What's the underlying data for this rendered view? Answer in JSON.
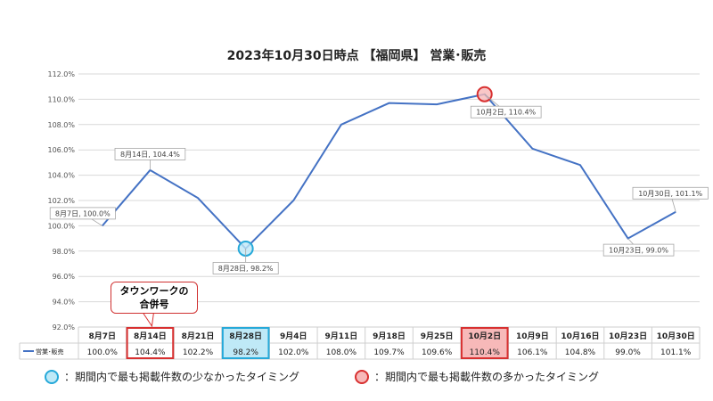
{
  "chart_data": {
    "type": "line",
    "title": "2023年10月30日時点 【福岡県】 営業･販売",
    "categories": [
      "8月7日",
      "8月14日",
      "8月21日",
      "8月28日",
      "9月4日",
      "9月11日",
      "9月18日",
      "9月25日",
      "10月2日",
      "10月9日",
      "10月16日",
      "10月23日",
      "10月30日"
    ],
    "series": [
      {
        "name": "営業･販売",
        "values": [
          100.0,
          104.4,
          102.2,
          98.2,
          102.0,
          108.0,
          109.7,
          109.6,
          110.4,
          106.1,
          104.8,
          99.0,
          101.1
        ],
        "table_values": [
          "100.0%",
          "104.4%",
          "102.2%",
          "98.2%",
          "102.0%",
          "108.0%",
          "109.7%",
          "109.6%",
          "110.4%",
          "106.1%",
          "104.8%",
          "99.0%",
          "101.1%"
        ],
        "color": "#4472c4"
      }
    ],
    "ylim": [
      92,
      112
    ],
    "yticks": [
      "92.0%",
      "94.0%",
      "96.0%",
      "98.0%",
      "100.0%",
      "102.0%",
      "104.0%",
      "106.0%",
      "108.0%",
      "110.0%",
      "112.0%"
    ],
    "grid": true,
    "data_labels": [
      {
        "index": 0,
        "text": "8月7日, 100.0%"
      },
      {
        "index": 1,
        "text": "8月14日, 104.4%"
      },
      {
        "index": 3,
        "text": "8月28日, 98.2%"
      },
      {
        "index": 8,
        "text": "10月2日, 110.4%"
      },
      {
        "index": 11,
        "text": "10月23日, 99.0%"
      },
      {
        "index": 12,
        "text": "10月30日, 101.1%"
      }
    ],
    "highlights": {
      "min_index": 3,
      "max_index": 8,
      "min_color": "#26a9d9",
      "min_fill": "#bfe9f7",
      "max_color": "#d83030",
      "max_fill": "#f7b9b9",
      "callout_index": 1
    }
  },
  "callout": {
    "line1": "タウンワークの",
    "line2": "合併号"
  },
  "legend": {
    "min_text": "：期間内で最も掲載件数の少なかったタイミング",
    "max_text": "：期間内で最も掲載件数の多かったタイミング"
  }
}
